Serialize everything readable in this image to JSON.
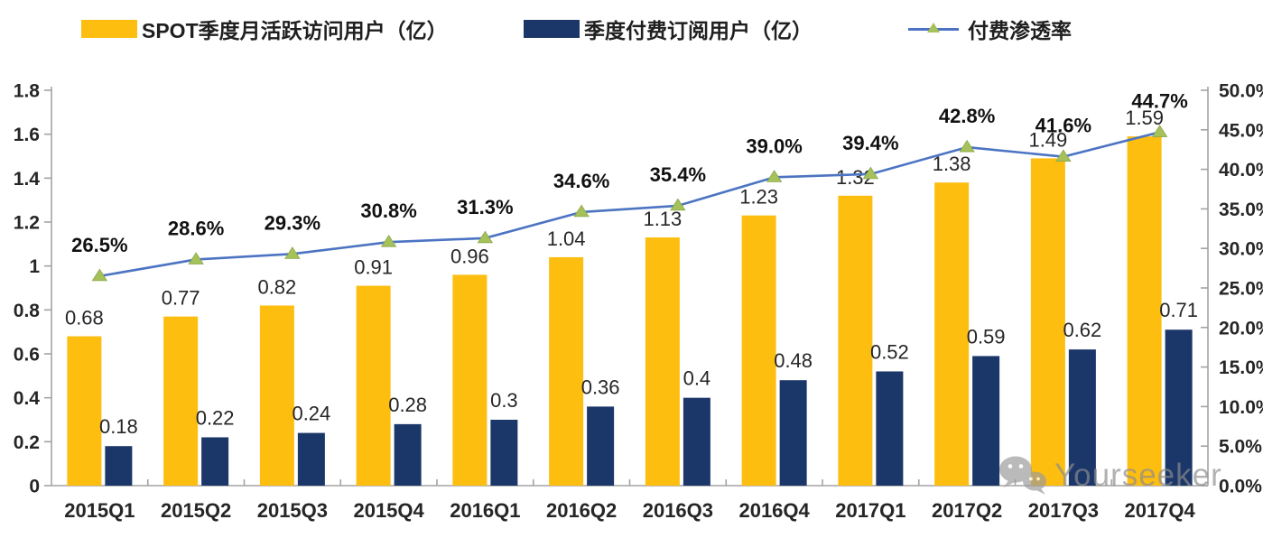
{
  "legend": {
    "items": [
      {
        "id": "mau",
        "label": "SPOT季度月活跃访问用户（亿）",
        "color": "#fdbe10"
      },
      {
        "id": "paid",
        "label": "季度付费订阅用户（亿）",
        "color": "#1b3668"
      },
      {
        "id": "penetration",
        "label": "付费渗透率",
        "line_color": "#4c74c2",
        "marker_color": "#a6c159"
      }
    ]
  },
  "watermark": {
    "text": "Yourseeker",
    "icon": "wechat-icon"
  },
  "chart_data": {
    "type": "combo-bar-line",
    "title": "",
    "legend_position": "top",
    "grid": false,
    "categories": [
      "2015Q1",
      "2015Q2",
      "2015Q3",
      "2015Q4",
      "2016Q1",
      "2016Q2",
      "2016Q3",
      "2016Q4",
      "2017Q1",
      "2017Q2",
      "2017Q3",
      "2017Q4"
    ],
    "series": [
      {
        "name": "SPOT季度月活跃访问用户（亿）",
        "type": "bar",
        "axis": "left",
        "color": "#fdbe10",
        "values": [
          0.68,
          0.77,
          0.82,
          0.91,
          0.96,
          1.04,
          1.13,
          1.23,
          1.32,
          1.38,
          1.49,
          1.59
        ],
        "labels": [
          "0.68",
          "0.77",
          "0.82",
          "0.91",
          "0.96",
          "1.04",
          "1.13",
          "1.23",
          "1.32",
          "1.38",
          "1.49",
          "1.59"
        ]
      },
      {
        "name": "季度付费订阅用户（亿）",
        "type": "bar",
        "axis": "left",
        "color": "#1b3668",
        "values": [
          0.18,
          0.22,
          0.24,
          0.28,
          0.3,
          0.36,
          0.4,
          0.48,
          0.52,
          0.59,
          0.62,
          0.71
        ],
        "labels": [
          "0.18",
          "0.22",
          "0.24",
          "0.28",
          "0.3",
          "0.36",
          "0.4",
          "0.48",
          "0.52",
          "0.59",
          "0.62",
          "0.71"
        ]
      },
      {
        "name": "付费渗透率",
        "type": "line",
        "axis": "right",
        "color": "#4c74c2",
        "marker": "triangle",
        "marker_color": "#a6c159",
        "values": [
          26.5,
          28.6,
          29.3,
          30.8,
          31.3,
          34.6,
          35.4,
          39.0,
          39.4,
          42.8,
          41.6,
          44.7
        ],
        "labels": [
          "26.5%",
          "28.6%",
          "29.3%",
          "30.8%",
          "31.3%",
          "34.6%",
          "35.4%",
          "39.0%",
          "39.4%",
          "42.8%",
          "41.6%",
          "44.7%"
        ]
      }
    ],
    "left_axis": {
      "min": 0,
      "max": 1.8,
      "step": 0.2,
      "tick_labels": [
        "0",
        "0.2",
        "0.4",
        "0.6",
        "0.8",
        "1",
        "1.2",
        "1.4",
        "1.6",
        "1.8"
      ]
    },
    "right_axis": {
      "min": 0,
      "max": 50,
      "step": 5,
      "tick_labels": [
        "0.0%",
        "5.0%",
        "10.0%",
        "15.0%",
        "20.0%",
        "25.0%",
        "30.0%",
        "35.0%",
        "40.0%",
        "45.0%",
        "50.0%"
      ]
    }
  }
}
